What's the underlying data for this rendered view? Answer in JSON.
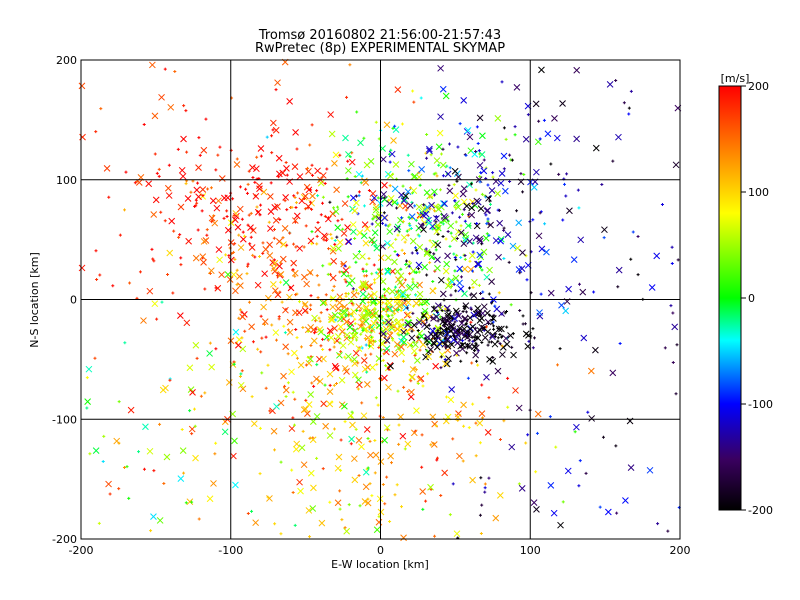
{
  "chart_data": {
    "type": "scatter",
    "title": "Tromsø 20160802 21:56:00-21:57:43",
    "subtitle": "RwPretec (8p) EXPERIMENTAL SKYMAP",
    "xlabel": "E-W location [km]",
    "ylabel": "N-S location [km]",
    "xlim": [
      -200,
      200
    ],
    "ylim": [
      -200,
      200
    ],
    "x_ticks": [
      "-200",
      "-100",
      "0",
      "100",
      "200"
    ],
    "y_ticks": [
      "-200",
      "-100",
      "0",
      "100",
      "200"
    ],
    "grid": true,
    "colorbar": {
      "label": "[m/s]",
      "range": [
        -200,
        200
      ],
      "ticks": [
        "200",
        "100",
        "0",
        "-100",
        "-200"
      ],
      "colormap": [
        "#000000",
        "#5a0090",
        "#0000ff",
        "#00ffff",
        "#00ff00",
        "#ffff00",
        "#ff8000",
        "#ff0000"
      ]
    },
    "markers": [
      "+",
      "x"
    ],
    "clusters": [
      {
        "region": "west-north",
        "x": -80,
        "y": 75,
        "value": 190
      },
      {
        "region": "center-west",
        "x": -40,
        "y": -15,
        "value": 150
      },
      {
        "region": "center",
        "x": 0,
        "y": -15,
        "value": 60
      },
      {
        "region": "center-north",
        "x": 20,
        "y": 60,
        "value": 30
      },
      {
        "region": "east-center",
        "x": 55,
        "y": -25,
        "value": -195
      },
      {
        "region": "east-north",
        "x": 60,
        "y": 70,
        "value": -130
      },
      {
        "region": "south",
        "x": -10,
        "y": -110,
        "value": 110
      }
    ]
  }
}
